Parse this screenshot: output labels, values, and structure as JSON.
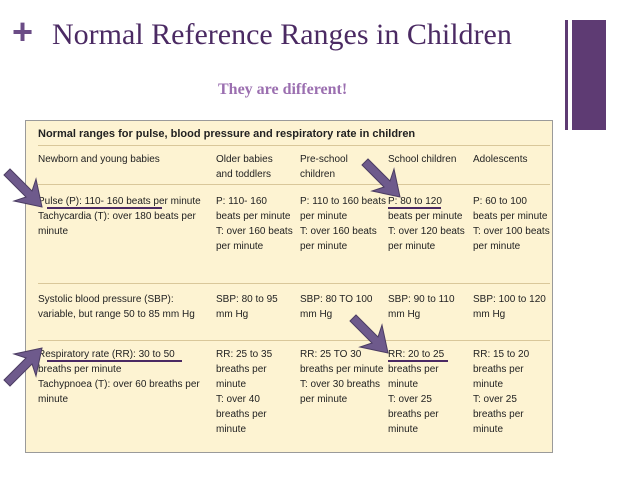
{
  "slide": {
    "plus": "+",
    "title": "Normal Reference Ranges in Children",
    "subtitle": "They are different!"
  },
  "table": {
    "caption": "Normal ranges for pulse, blood pressure and respiratory rate in children",
    "headers": [
      "Newborn and young babies",
      "Older babies and toddlers",
      "Pre-school children",
      "School children",
      "Adolescents"
    ],
    "rows": [
      [
        [
          "Pulse (P): 110- 160 beats per minute",
          "Tachycardia (T): over 180 beats per minute"
        ],
        [
          "P: 110- 160 beats per minute",
          "T: over 160 beats per minute"
        ],
        [
          "P: 110 to 160 beats per minute",
          "T: over 160 beats per minute"
        ],
        [
          "P: 80 to 120 beats per minute",
          "T: over 120 beats per minute"
        ],
        [
          "P: 60 to 100 beats per minute",
          "T: over 100 beats per minute"
        ]
      ],
      [
        [
          "Systolic blood pressure (SBP): variable, but range 50 to 85 mm Hg"
        ],
        [
          "SBP: 80 to 95 mm Hg"
        ],
        [
          "SBP: 80 TO 100 mm Hg"
        ],
        [
          "SBP: 90 to 110 mm Hg"
        ],
        [
          "SBP: 100 to 120 mm Hg"
        ]
      ],
      [
        [
          "Respiratory rate (RR): 30 to 50 breaths per minute",
          "Tachypnoea (T): over 60 breaths per minute"
        ],
        [
          "RR: 25 to 35 breaths per minute",
          "T: over 40 breaths per minute"
        ],
        [
          "RR: 25 TO 30 breaths per minute",
          "T: over 30 breaths per minute"
        ],
        [
          "RR: 20 to 25 breaths per minute",
          "T: over 25 breaths per minute"
        ],
        [
          "RR: 15 to 20 breaths per minute",
          "T: over 25 breaths per minute"
        ]
      ]
    ]
  },
  "colors": {
    "accent": "#5e3b73",
    "title": "#4b2a63",
    "subtitle": "#9b6fb0",
    "table_bg": "#fdf3d2",
    "arrow": "#6e5a8c"
  },
  "icons": [
    "plus-icon",
    "arrow-icon"
  ]
}
